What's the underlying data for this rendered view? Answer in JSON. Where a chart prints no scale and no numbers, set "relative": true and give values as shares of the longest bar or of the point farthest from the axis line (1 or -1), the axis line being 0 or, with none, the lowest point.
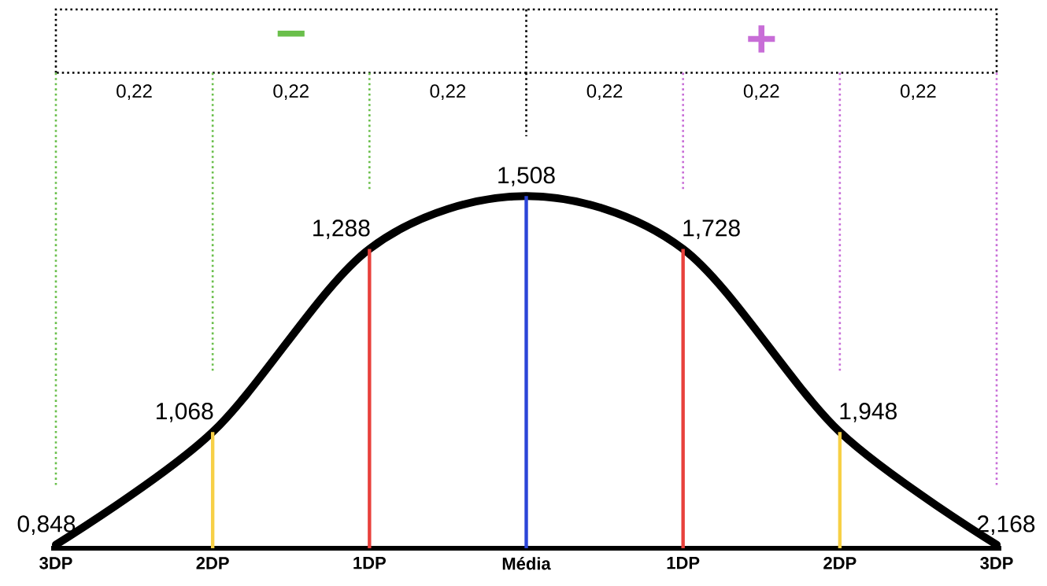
{
  "chart_data": {
    "type": "line",
    "relative": true,
    "marker": "none",
    "line_style": "solid",
    "grid": "x",
    "categories": [
      "3DP",
      "2DP",
      "1DP",
      "Média",
      "1DP",
      "2DP",
      "3DP"
    ],
    "series": [
      {
        "color": "#000000",
        "values": [
          0.01,
          0.33,
          0.85,
          1,
          0.85,
          0.33,
          0.01
        ]
      },
      {
        "type": "bar",
        "values": [
          null,
          0.33,
          0.85,
          1,
          0.85,
          0.33,
          null
        ],
        "colors": [
          null,
          "#f7d046",
          "#e8413c",
          "#2b45d8",
          "#e8413c",
          "#f7d046",
          null
        ]
      }
    ],
    "annotations": [
      "−",
      "+",
      "0,22",
      "0,22",
      "0,22",
      "0,22",
      "0,22",
      "0,22",
      "0,848",
      "1,068",
      "1,288",
      "1,508",
      "1,728",
      "1,948",
      "2,168"
    ]
  }
}
